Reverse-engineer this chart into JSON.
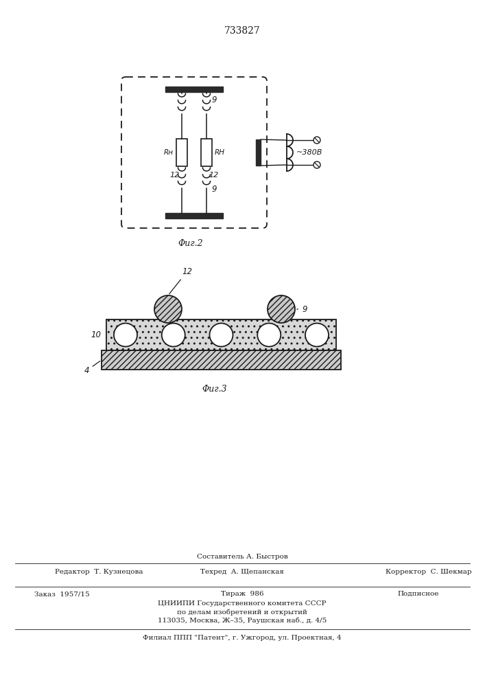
{
  "patent_number": "733827",
  "fig2_caption": "Φиг.2",
  "fig3_caption": "Φиг.3",
  "label_9": "9",
  "label_12": "12",
  "label_10": "10",
  "label_4": "4",
  "label_RH": "Rн",
  "label_RN": "RН",
  "label_380": "~380В",
  "footer_line1": "Составитель А. Быстров",
  "footer_editor": "Редактор  Т. Кузнецова",
  "footer_tech": "Техред  А. Щепанская",
  "footer_corrector": "Корректор  С. Шекмар",
  "footer_order": "Заказ  1957/15",
  "footer_tirazh": "Тираж  986",
  "footer_podpisnoe": "Подписное",
  "footer_org1": "ЦНИИПИ Государственного комитета СССР",
  "footer_org2": "по делам изобретений и открытий",
  "footer_addr": "113035, Москва, Ж–35, Раушская наб., д. 4/5",
  "footer_filial": "Филиал ППП \"Патент\", г. Ужгород, ул. Проектная, 4"
}
